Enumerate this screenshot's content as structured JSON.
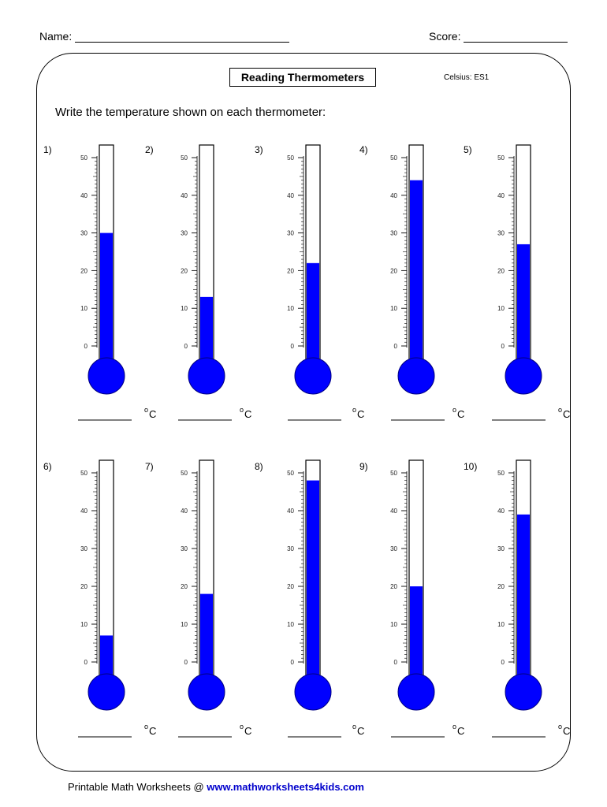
{
  "header": {
    "name_label": "Name:",
    "score_label": "Score:"
  },
  "title": "Reading Thermometers",
  "worksheet_code": "Celsius: ES1",
  "instructions": "Write the temperature shown on each thermometer:",
  "scale": {
    "min": 0,
    "max": 50,
    "major_step": 10,
    "minor_step": 1,
    "labels": [
      "0",
      "10",
      "20",
      "30",
      "40",
      "50"
    ]
  },
  "unit": {
    "degree": "o",
    "letter": "C"
  },
  "colors": {
    "mercury": "#0000ff",
    "bulb_stroke": "#000080"
  },
  "thermometers": [
    {
      "number": "1)",
      "reading": 30
    },
    {
      "number": "2)",
      "reading": 13
    },
    {
      "number": "3)",
      "reading": 22
    },
    {
      "number": "4)",
      "reading": 44
    },
    {
      "number": "5)",
      "reading": 27
    },
    {
      "number": "6)",
      "reading": 7
    },
    {
      "number": "7)",
      "reading": 18
    },
    {
      "number": "8)",
      "reading": 48
    },
    {
      "number": "9)",
      "reading": 20
    },
    {
      "number": "10)",
      "reading": 39
    }
  ],
  "footer": {
    "prefix": "Printable Math Worksheets @ ",
    "url": "www.mathworksheets4kids.com"
  }
}
